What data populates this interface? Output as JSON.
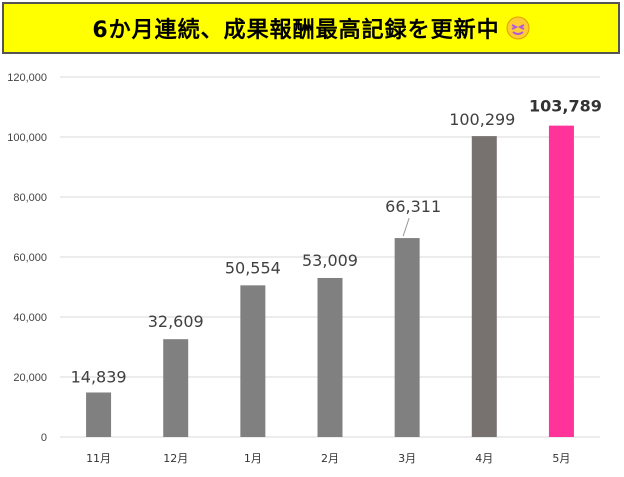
{
  "title": "6か月連続、成果報酬最高記録を更新中",
  "title_emoji": "sparkle-face-icon",
  "colors": {
    "banner_bg": "#ffff00",
    "bar_default": "#808080",
    "bar_apr": "#777170",
    "bar_highlight": "#ff3399",
    "grid": "#d9d9d9"
  },
  "chart_data": {
    "type": "bar",
    "categories": [
      "11月",
      "12月",
      "1月",
      "2月",
      "3月",
      "4月",
      "5月"
    ],
    "values": [
      14839,
      32609,
      50554,
      53009,
      66311,
      100299,
      103789
    ],
    "data_labels": [
      "14,839",
      "32,609",
      "50,554",
      "53,009",
      "66,311",
      "100,299",
      "103,789"
    ],
    "highlight_index": 6,
    "yticks": [
      "0",
      "20,000",
      "40,000",
      "60,000",
      "80,000",
      "100,000",
      "120,000"
    ],
    "ylim": [
      0,
      120000
    ],
    "grid": true,
    "legend": "none",
    "xlabel": "",
    "ylabel": ""
  }
}
